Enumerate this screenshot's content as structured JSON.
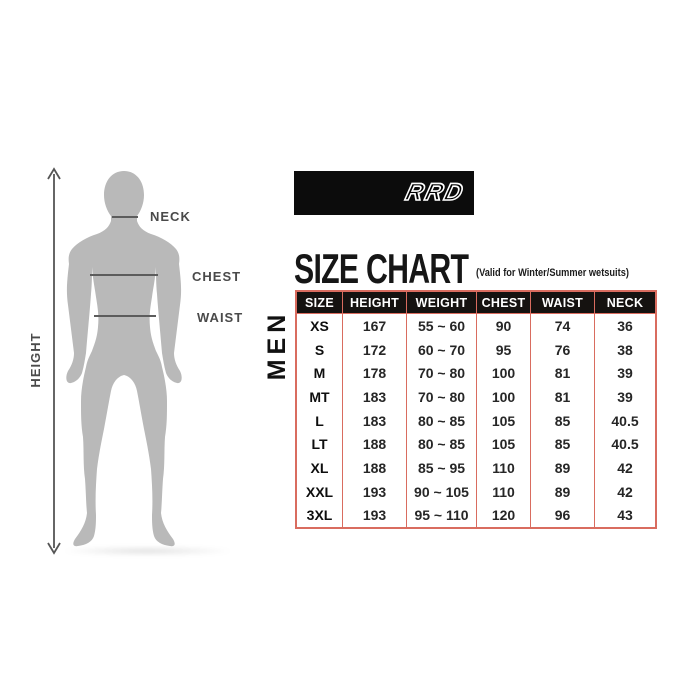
{
  "brand": {
    "logo_text": "RRD"
  },
  "header": {
    "title": "SIZE CHART",
    "subtitle": "(Valid for Winter/Summer wetsuits)"
  },
  "figure": {
    "height_label": "HEIGHT",
    "neck_label": "NECK",
    "chest_label": "CHEST",
    "waist_label": "WAIST"
  },
  "size_chart": {
    "group_label": "MEN",
    "columns": [
      "SIZE",
      "HEIGHT",
      "WEIGHT",
      "CHEST",
      "WAIST",
      "NECK"
    ],
    "rows": [
      [
        "XS",
        "167",
        "55 ~ 60",
        "90",
        "74",
        "36"
      ],
      [
        "S",
        "172",
        "60 ~ 70",
        "95",
        "76",
        "38"
      ],
      [
        "M",
        "178",
        "70 ~ 80",
        "100",
        "81",
        "39"
      ],
      [
        "MT",
        "183",
        "70 ~ 80",
        "100",
        "81",
        "39"
      ],
      [
        "L",
        "183",
        "80 ~ 85",
        "105",
        "85",
        "40.5"
      ],
      [
        "LT",
        "188",
        "80 ~ 85",
        "105",
        "85",
        "40.5"
      ],
      [
        "XL",
        "188",
        "85 ~ 95",
        "110",
        "89",
        "42"
      ],
      [
        "XXL",
        "193",
        "90 ~ 105",
        "110",
        "89",
        "42"
      ],
      [
        "3XL",
        "193",
        "95 ~ 110",
        "120",
        "96",
        "43"
      ]
    ]
  },
  "colors": {
    "table_border": "#d96c5f",
    "header_bg": "#151210",
    "silhouette": "#b9b9b9",
    "label_text": "#4a4a4a",
    "banner_bg": "#0c0c0c"
  }
}
